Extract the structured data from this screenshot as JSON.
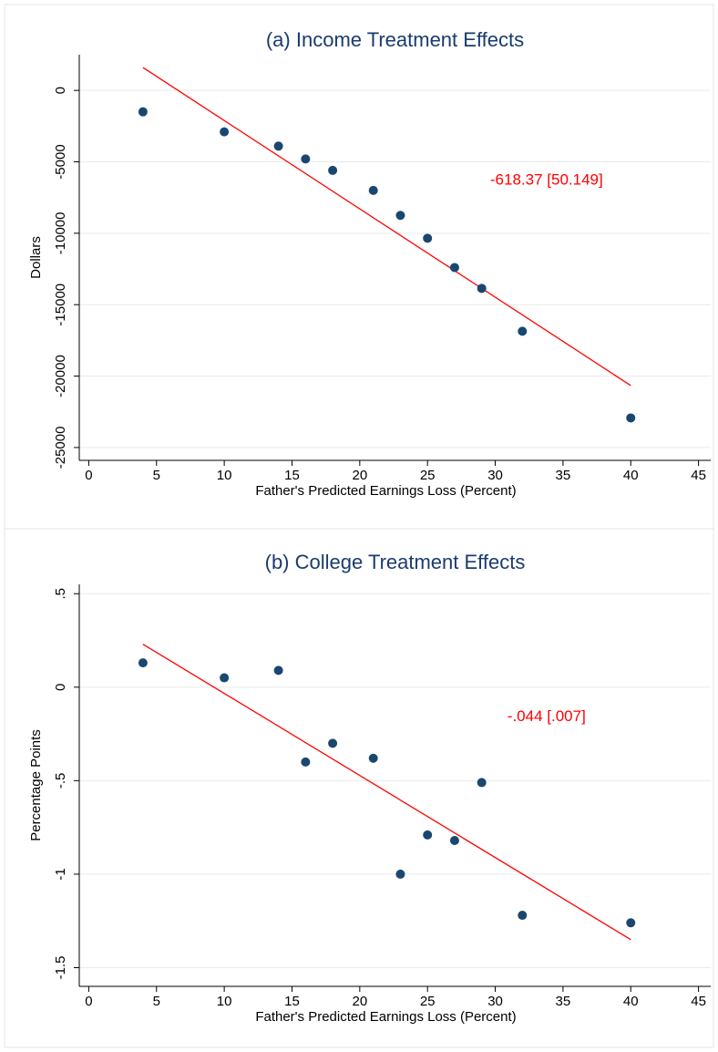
{
  "chart_data": [
    {
      "type": "scatter",
      "title": "(a) Income Treatment Effects",
      "x_label": "Father's Predicted Earnings Loss (Percent)",
      "y_label": "Dollars",
      "annotation": "-618.37 [50.149]",
      "annotation_color": "#ff0000",
      "x": [
        4,
        10,
        14,
        16,
        18,
        21,
        23,
        25,
        27,
        29,
        32,
        40
      ],
      "values": [
        -1500,
        -2900,
        -3900,
        -4800,
        -5600,
        -7000,
        -8750,
        -10350,
        -12400,
        -13860,
        -16860,
        -22930
      ],
      "color": "#1a476f",
      "fit": {
        "x": [
          4,
          40
        ],
        "y": [
          1600,
          -20660
        ],
        "color": "#ff0000"
      },
      "xlim": [
        -0.7,
        45.9
      ],
      "xticks": [
        0,
        5,
        10,
        15,
        20,
        25,
        30,
        35,
        40,
        45
      ],
      "ylim": [
        -25900,
        2500
      ],
      "yticks": [
        0,
        -5000,
        -10000,
        -15000,
        -20000,
        -25000
      ],
      "grid": true
    },
    {
      "type": "scatter",
      "title": "(b) College Treatment Effects",
      "x_label": "Father's Predicted Earnings Loss (Percent)",
      "y_label": "Percentage Points",
      "annotation": "-.044 [.007]",
      "annotation_color": "#ff0000",
      "x": [
        4,
        10,
        14,
        16,
        18,
        21,
        23,
        25,
        27,
        29,
        32,
        40
      ],
      "values": [
        0.13,
        0.05,
        0.09,
        -0.4,
        -0.3,
        -0.38,
        -1.0,
        -0.79,
        -0.82,
        -0.51,
        -1.22,
        -1.26
      ],
      "color": "#1a476f",
      "fit": {
        "x": [
          4,
          40
        ],
        "y": [
          0.23,
          -1.35
        ],
        "color": "#ff0000"
      },
      "xlim": [
        -0.7,
        45.9
      ],
      "xticks": [
        0,
        5,
        10,
        15,
        20,
        25,
        30,
        35,
        40,
        45
      ],
      "ylim": [
        -1.6,
        0.55
      ],
      "yticks": [
        {
          "value": 0.5,
          "label": ".5"
        },
        0,
        {
          "value": -0.5,
          "label": "-.5"
        },
        -1,
        {
          "value": -1.5,
          "label": "-1.5"
        }
      ],
      "grid": true
    }
  ]
}
